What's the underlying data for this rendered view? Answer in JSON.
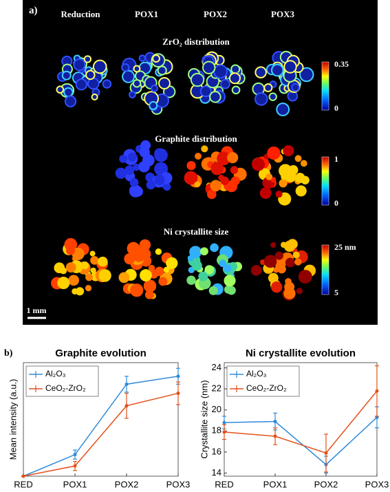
{
  "panel_a": {
    "label": "a)",
    "columns": [
      "Reduction",
      "POX1",
      "POX2",
      "POX3"
    ],
    "rows": [
      {
        "title": "ZrO₂ distribution",
        "colorbar_top": "0.35",
        "colorbar_bottom": "0"
      },
      {
        "title": "Graphite distribution",
        "colorbar_top": "1",
        "colorbar_bottom": "0"
      },
      {
        "title": "Ni crystallite size",
        "colorbar_top": "25 nm",
        "colorbar_bottom": "5"
      }
    ],
    "scale_bar": "1 mm"
  },
  "panel_b": {
    "label": "b)"
  },
  "chart_data": [
    {
      "type": "line",
      "title": "Graphite evolution",
      "y_label": "Mean intensity (a.u.)",
      "categories": [
        "RED",
        "POX1",
        "POX2",
        "POX3"
      ],
      "ylim": [
        0,
        1
      ],
      "legend": "upper left",
      "series": [
        {
          "name": "Al₂O₃",
          "color": "#2f8ad8",
          "values": [
            0,
            0.19,
            0.81,
            0.88
          ],
          "errors": [
            0,
            0.04,
            0.07,
            0.07
          ]
        },
        {
          "name": "CeO₂-ZrO₂",
          "color": "#e2511b",
          "values": [
            0,
            0.09,
            0.62,
            0.73
          ],
          "errors": [
            0,
            0.04,
            0.11,
            0.1
          ]
        }
      ]
    },
    {
      "type": "line",
      "title": "Ni crystallite evolution",
      "y_label": "Crystallite size (nm)",
      "categories": [
        "RED",
        "POX1",
        "POX2",
        "POX3"
      ],
      "ylim": [
        13.7,
        24.5
      ],
      "yticks": [
        14,
        16,
        18,
        20,
        22,
        24
      ],
      "legend": "upper left",
      "series": [
        {
          "name": "Al₂O₃",
          "color": "#2f8ad8",
          "values": [
            18.8,
            18.9,
            14.8,
            19.3
          ],
          "errors": [
            0.6,
            0.8,
            0.8,
            1.0
          ]
        },
        {
          "name": "CeO₂-ZrO₂",
          "color": "#e2511b",
          "values": [
            17.9,
            17.5,
            15.9,
            21.8
          ],
          "errors": [
            0.7,
            0.8,
            1.8,
            2.4
          ]
        }
      ]
    }
  ]
}
